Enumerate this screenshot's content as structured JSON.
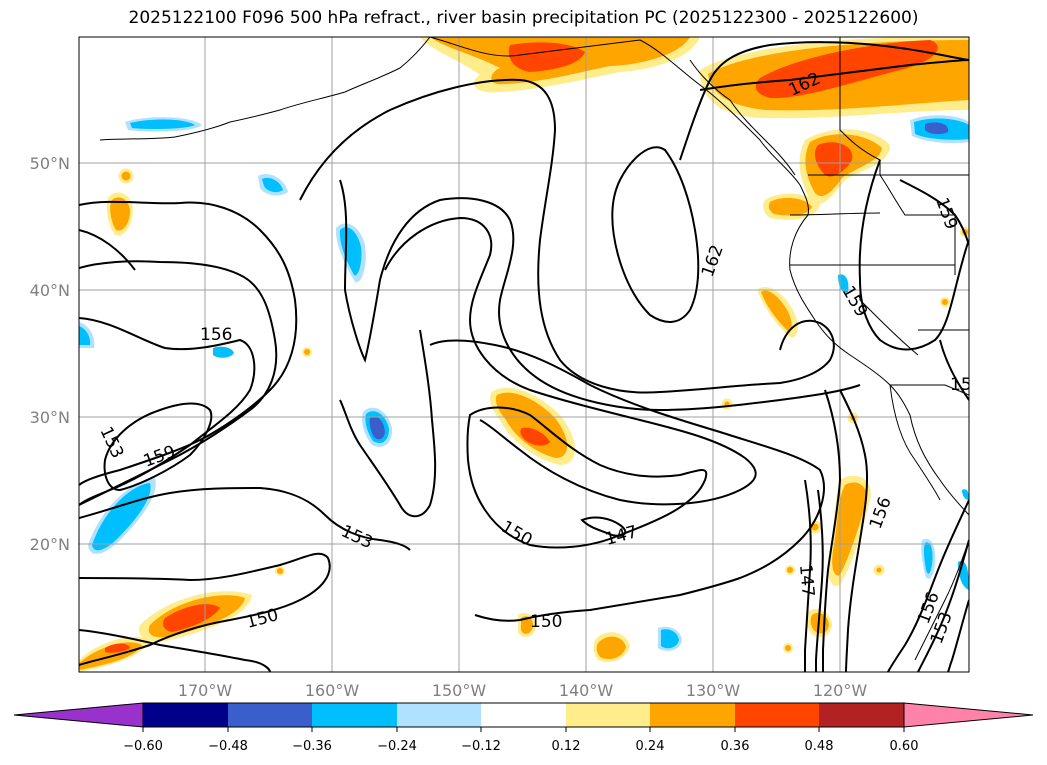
{
  "title": "2025122100 F096 500 hPa refract., river basin precipitation PC (2025122300 - 2025122600)",
  "lat_labels": [
    "50°N",
    "40°N",
    "30°N",
    "20°N"
  ],
  "lon_labels": [
    "170°W",
    "160°W",
    "150°W",
    "140°W",
    "130°W",
    "120°W"
  ],
  "contour_labels": [
    "156",
    "153",
    "159",
    "153",
    "150",
    "150",
    "150",
    "147",
    "162",
    "162",
    "159",
    "156",
    "147",
    "156",
    "153",
    "159",
    "15"
  ],
  "colorbar": {
    "ticks": [
      "−0.60",
      "−0.48",
      "−0.36",
      "−0.24",
      "−0.12",
      "0.12",
      "0.24",
      "0.36",
      "0.48",
      "0.60"
    ],
    "colors": [
      "#9932cc",
      "#00008b",
      "#3a5fcd",
      "#00bfff",
      "#b0e2ff",
      "#ffffff",
      "#ffec8b",
      "#ffa500",
      "#ff4500",
      "#b22222",
      "#ff82ab"
    ]
  },
  "colors": {
    "yellow": "#ffec8b",
    "orange": "#ffa500",
    "red_orange": "#ff4500",
    "light_blue": "#b0e2ff",
    "deep_sky": "#00bfff",
    "royal_blue": "#3a5fcd",
    "grid": "#a0a0a0",
    "label_gray": "#808080"
  }
}
